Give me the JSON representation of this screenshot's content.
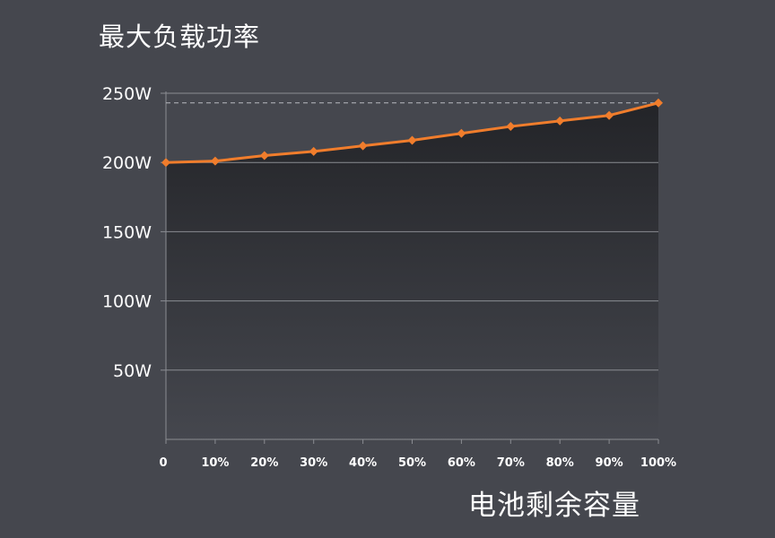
{
  "chart_data": {
    "type": "area",
    "title": "最大负载功率",
    "xlabel": "电池剩余容量",
    "ylabel": "",
    "categories": [
      "0",
      "10%",
      "20%",
      "30%",
      "40%",
      "50%",
      "60%",
      "70%",
      "80%",
      "90%",
      "100%"
    ],
    "series": [
      {
        "values": [
          200,
          201,
          205,
          208,
          212,
          216,
          221,
          226,
          230,
          234,
          243
        ]
      }
    ],
    "ylim": [
      0,
      250
    ],
    "yticks": [
      50,
      100,
      150,
      200,
      250
    ],
    "ytick_labels": [
      "50W",
      "100W",
      "150W",
      "200W",
      "250W"
    ],
    "reference_line": {
      "value": 243,
      "style": "dashed"
    },
    "grid": true,
    "legend": "none",
    "colors": {
      "background": "#45474e",
      "line": "#f07d2c",
      "grid": "#8a8c92",
      "fill_top": "#232428",
      "fill_bottom": "#45474e"
    }
  }
}
